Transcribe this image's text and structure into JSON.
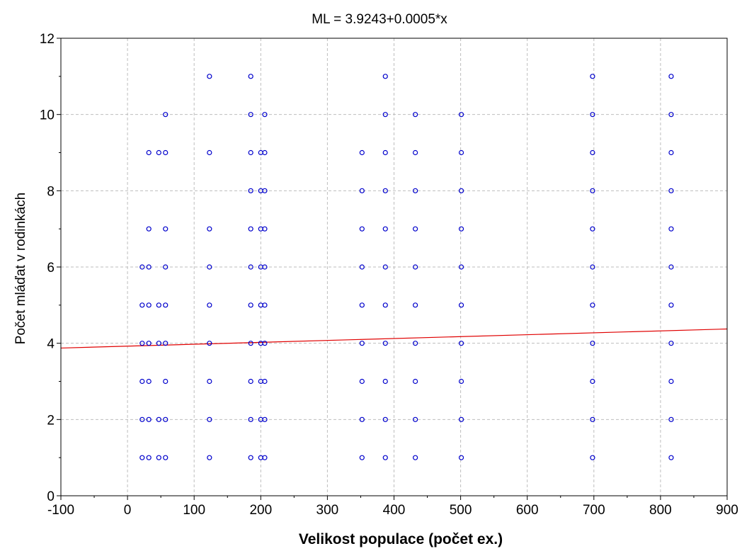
{
  "chart_data": {
    "type": "scatter",
    "title": "ML = 3.9243+0.0005*x",
    "xlabel": "Velikost populace (počet ex.)",
    "ylabel": "Počet mláďat v rodinkách",
    "xlim": [
      -100,
      900
    ],
    "ylim": [
      0,
      12
    ],
    "xticks": [
      -100,
      0,
      100,
      200,
      300,
      400,
      500,
      600,
      700,
      800,
      900
    ],
    "yticks": [
      0,
      2,
      4,
      6,
      8,
      10,
      12
    ],
    "grid": true,
    "legend": "none",
    "colors": {
      "points": "#0000cc",
      "fit_line": "#e00000",
      "grid": "#bdbdbd"
    },
    "fit_line": {
      "intercept": 3.9243,
      "slope": 0.0005
    },
    "groups": [
      {
        "x": 22,
        "y": [
          1,
          2,
          3,
          4,
          5,
          6
        ]
      },
      {
        "x": 32,
        "y": [
          1,
          2,
          3,
          4,
          5,
          6,
          7,
          9
        ]
      },
      {
        "x": 47,
        "y": [
          1,
          2,
          4,
          5,
          9
        ]
      },
      {
        "x": 57,
        "y": [
          1,
          2,
          3,
          4,
          5,
          6,
          7,
          9,
          10
        ]
      },
      {
        "x": 123,
        "y": [
          1,
          2,
          3,
          4,
          5,
          6,
          7,
          9,
          11
        ]
      },
      {
        "x": 185,
        "y": [
          1,
          2,
          3,
          4,
          5,
          6,
          7,
          8,
          9,
          10,
          11
        ]
      },
      {
        "x": 200,
        "y": [
          1,
          2,
          3,
          4,
          5,
          6,
          7,
          8,
          9
        ]
      },
      {
        "x": 206,
        "y": [
          1,
          2,
          3,
          4,
          5,
          6,
          7,
          8,
          9,
          10
        ]
      },
      {
        "x": 352,
        "y": [
          1,
          2,
          3,
          4,
          5,
          6,
          7,
          8,
          9
        ]
      },
      {
        "x": 387,
        "y": [
          1,
          2,
          3,
          4,
          5,
          6,
          7,
          8,
          9,
          10,
          11
        ]
      },
      {
        "x": 432,
        "y": [
          1,
          2,
          3,
          4,
          5,
          6,
          7,
          8,
          9,
          10
        ]
      },
      {
        "x": 501,
        "y": [
          1,
          2,
          3,
          4,
          5,
          6,
          7,
          8,
          9,
          10
        ]
      },
      {
        "x": 698,
        "y": [
          1,
          2,
          3,
          4,
          5,
          6,
          7,
          8,
          9,
          10,
          11
        ]
      },
      {
        "x": 816,
        "y": [
          1,
          2,
          3,
          4,
          5,
          6,
          7,
          8,
          9,
          10,
          11
        ]
      }
    ]
  }
}
